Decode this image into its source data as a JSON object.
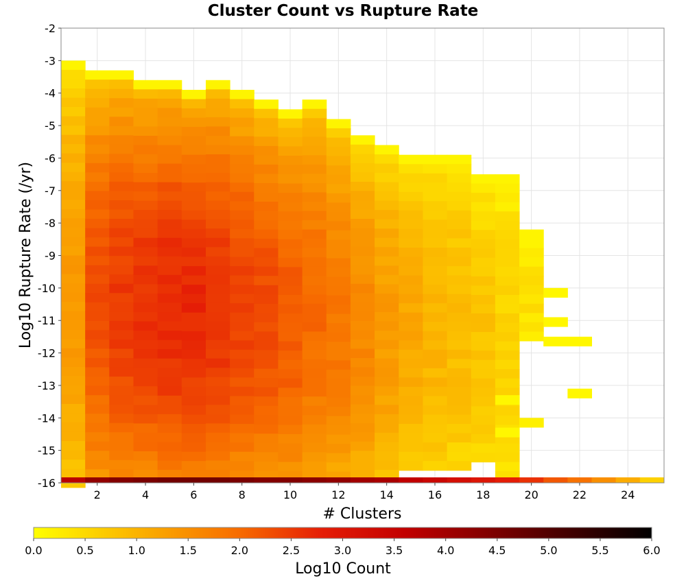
{
  "chart_data": {
    "type": "heatmap",
    "title": "Cluster Count vs Rupture Rate",
    "xlabel": "# Clusters",
    "ylabel": "Log10 Rupture Rate (/yr)",
    "colorbar_label": "Log10 Count",
    "xlim": [
      0.5,
      25.5
    ],
    "ylim": [
      -16,
      -2
    ],
    "x_ticks": [
      2,
      4,
      6,
      8,
      10,
      12,
      14,
      16,
      18,
      20,
      22,
      24
    ],
    "y_ticks": [
      -2,
      -3,
      -4,
      -5,
      -6,
      -7,
      -8,
      -9,
      -10,
      -11,
      -12,
      -13,
      -14,
      -15,
      -16
    ],
    "colorbar_ticks": [
      "0.0",
      "0.5",
      "1.0",
      "1.5",
      "2.0",
      "2.5",
      "3.0",
      "3.5",
      "4.0",
      "4.5",
      "5.0",
      "5.5",
      "6.0"
    ],
    "color_range": [
      0,
      6
    ],
    "colormap": [
      "#ffff00",
      "#fbb300",
      "#f76b00",
      "#e51d06",
      "#c20000",
      "#7a0000",
      "#000000"
    ],
    "cell_height_log": 0.2857,
    "columns": [
      {
        "x": 1,
        "y_top": -3.0,
        "y_bottom": -16.0,
        "peak": 1.35
      },
      {
        "x": 2,
        "y_top": -3.3,
        "y_bottom": -16.0,
        "peak": 2.3
      },
      {
        "x": 3,
        "y_top": -3.3,
        "y_bottom": -16.0,
        "peak": 2.5
      },
      {
        "x": 4,
        "y_top": -3.6,
        "y_bottom": -16.0,
        "peak": 2.6
      },
      {
        "x": 5,
        "y_top": -3.6,
        "y_bottom": -16.0,
        "peak": 2.7
      },
      {
        "x": 6,
        "y_top": -3.9,
        "y_bottom": -16.0,
        "peak": 2.7
      },
      {
        "x": 7,
        "y_top": -3.6,
        "y_bottom": -16.0,
        "peak": 2.6
      },
      {
        "x": 8,
        "y_top": -3.9,
        "y_bottom": -16.0,
        "peak": 2.45
      },
      {
        "x": 9,
        "y_top": -4.2,
        "y_bottom": -16.0,
        "peak": 2.35
      },
      {
        "x": 10,
        "y_top": -4.5,
        "y_bottom": -16.0,
        "peak": 2.2
      },
      {
        "x": 11,
        "y_top": -4.2,
        "y_bottom": -16.0,
        "peak": 2.0
      },
      {
        "x": 12,
        "y_top": -4.8,
        "y_bottom": -16.0,
        "peak": 1.85
      },
      {
        "x": 13,
        "y_top": -5.3,
        "y_bottom": -16.0,
        "peak": 1.6
      },
      {
        "x": 14,
        "y_top": -5.6,
        "y_bottom": -16.0,
        "peak": 1.35
      },
      {
        "x": 15,
        "y_top": -5.9,
        "y_bottom": -15.6,
        "peak": 1.15
      },
      {
        "x": 16,
        "y_top": -5.9,
        "y_bottom": -15.6,
        "peak": 1.0
      },
      {
        "x": 17,
        "y_top": -5.9,
        "y_bottom": -15.6,
        "peak": 0.9
      },
      {
        "x": 18,
        "y_top": -6.5,
        "y_bottom": -15.3,
        "peak": 0.8
      },
      {
        "x": 19,
        "y_top": -6.5,
        "y_bottom": -16.0,
        "peak": 0.6
      },
      {
        "x": 20,
        "y_top": -8.2,
        "y_bottom": -11.7,
        "peak": 0.4
      }
    ],
    "sparse_cells": [
      {
        "x": 19,
        "y": -13.3,
        "value": 0.1
      },
      {
        "x": 19,
        "y": -14.3,
        "value": 0.1
      },
      {
        "x": 20,
        "y": -14.0,
        "value": 0.2
      },
      {
        "x": 21,
        "y": -10.0,
        "value": 0.1
      },
      {
        "x": 21,
        "y": -10.9,
        "value": 0.1
      },
      {
        "x": 21,
        "y": -11.5,
        "value": 0.1
      },
      {
        "x": 22,
        "y": -11.5,
        "value": 0.1
      },
      {
        "x": 22,
        "y": -13.1,
        "value": 0.1
      }
    ],
    "bottom_row": {
      "y": -16.0,
      "values": [
        3.7,
        4.2,
        4.4,
        4.5,
        4.6,
        4.6,
        4.6,
        4.5,
        4.4,
        4.4,
        4.3,
        4.2,
        4.0,
        3.9,
        3.6,
        3.4,
        3.2,
        3.0,
        2.8,
        2.6,
        2.2,
        1.9,
        1.5,
        1.1,
        0.6
      ]
    }
  }
}
